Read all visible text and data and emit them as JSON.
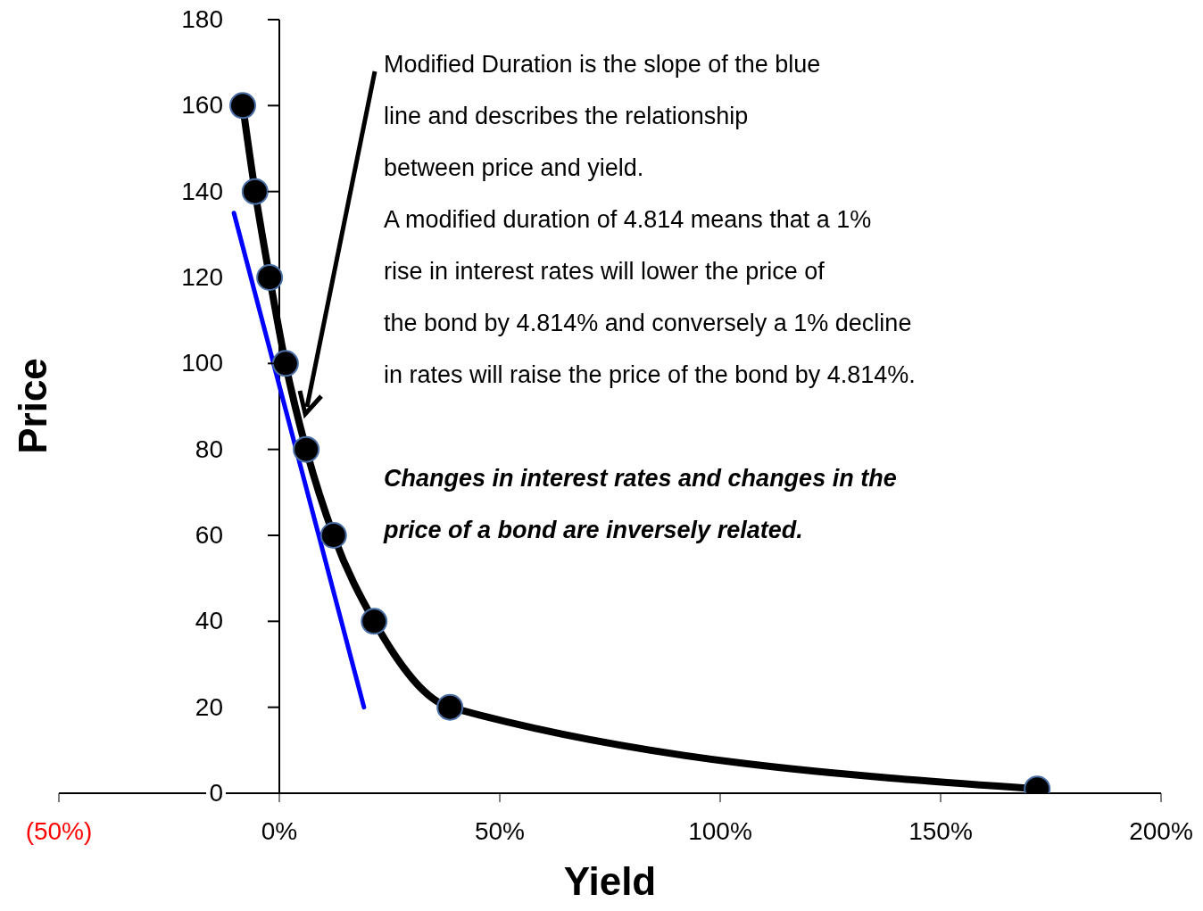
{
  "chart_data": {
    "type": "line",
    "xlabel": "Yield",
    "ylabel": "Price",
    "xlim": [
      -50,
      200
    ],
    "xticks": [
      {
        "value": -50,
        "label": "(50%)"
      },
      {
        "value": 0,
        "label": "0%"
      },
      {
        "value": 50,
        "label": "50%"
      },
      {
        "value": 100,
        "label": "100%"
      },
      {
        "value": 150,
        "label": "150%"
      },
      {
        "value": 200,
        "label": "200%"
      }
    ],
    "ylim": [
      0,
      180
    ],
    "yticks": [
      0,
      20,
      40,
      60,
      80,
      100,
      120,
      140,
      160,
      180
    ],
    "series": [
      {
        "color": "#000000",
        "marker": "circle",
        "x": [
          -8.3,
          -5.5,
          -2.2,
          1.4,
          6.1,
          12.3,
          21.5,
          38.7,
          171.9
        ],
        "values": [
          160,
          140,
          120,
          100,
          80,
          60,
          40,
          20,
          1
        ]
      },
      {
        "color": "#0000ff",
        "marker": "none",
        "x": [
          -10.3,
          19.2
        ],
        "values": [
          135,
          20
        ]
      }
    ],
    "annotations": [
      "Modified Duration is the slope of the blue",
      "line and describes the relationship",
      "between price and yield.",
      "A modified duration of 4.814 means that a 1%",
      "rise in interest rates will lower the price of",
      "the bond by 4.814% and conversely a 1% decline",
      "in rates will raise the price of the bond by 4.814%.",
      "Changes in interest rates and changes in the",
      "price of a bond are inversely related."
    ]
  }
}
